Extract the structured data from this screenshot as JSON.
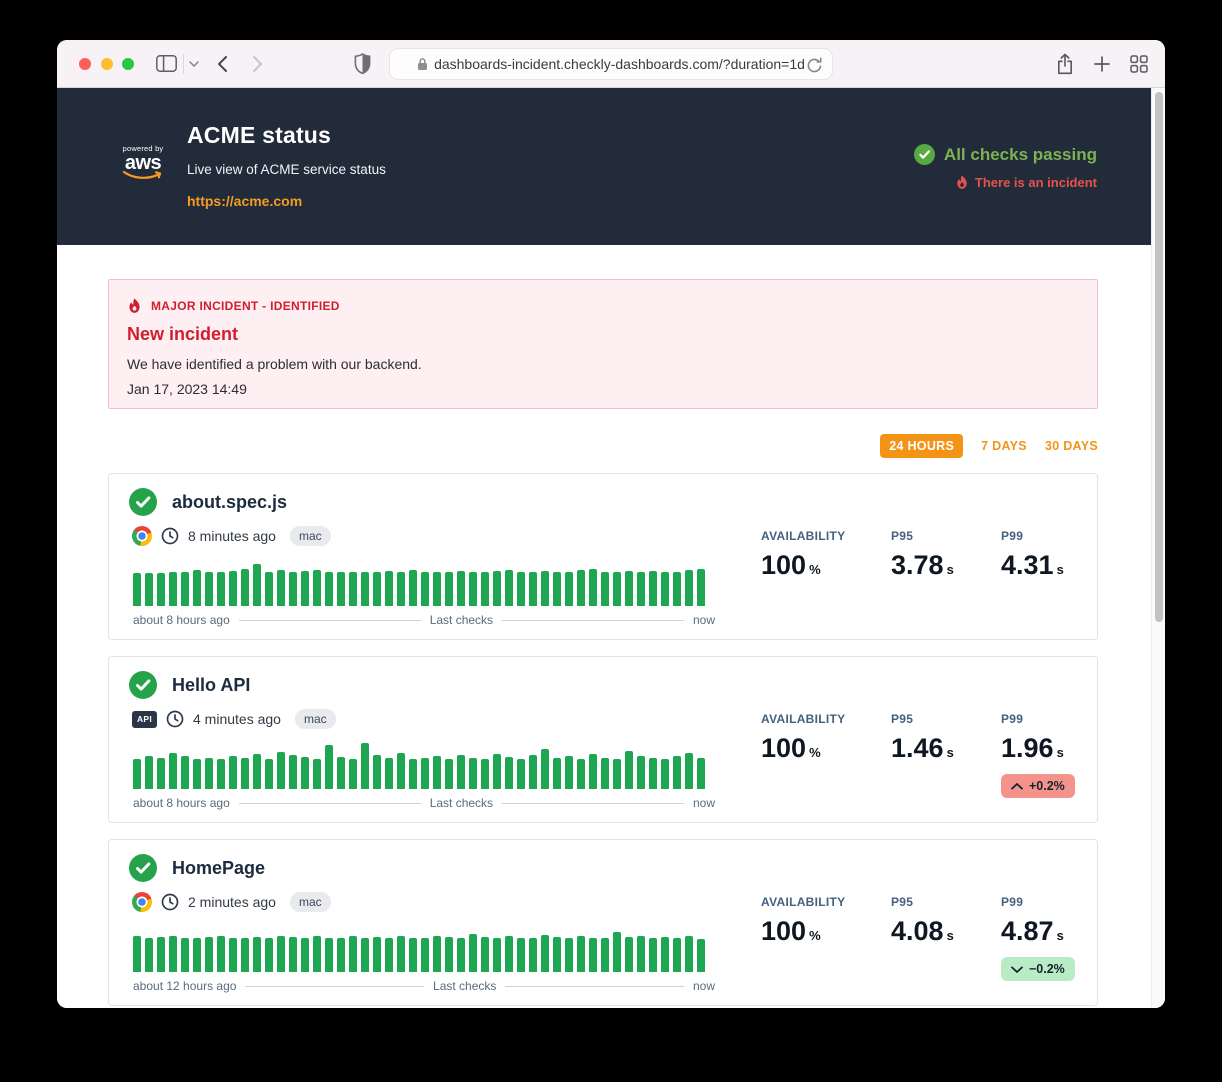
{
  "browser": {
    "url": "dashboards-incident.checkly-dashboards.com/?duration=1d"
  },
  "header": {
    "logo_powered_by": "powered by",
    "logo_text": "aws",
    "title": "ACME status",
    "subtitle": "Live view of ACME service status",
    "link": "https://acme.com",
    "status_ok": "All checks passing",
    "incident_link": "There is an incident"
  },
  "incident": {
    "label": "MAJOR INCIDENT - IDENTIFIED",
    "title": "New incident",
    "message": "We have identified a problem with our backend.",
    "timestamp": "Jan 17, 2023 14:49"
  },
  "duration_tabs": {
    "t24h": "24 HOURS",
    "t7d": "7 DAYS",
    "t30d": "30 DAYS",
    "active": "24 HOURS"
  },
  "stats_labels": {
    "availability": "AVAILABILITY",
    "p95": "P95",
    "p99": "P99"
  },
  "checks": [
    {
      "name": "about.spec.js",
      "type": "browser-check",
      "checked": "8 minutes ago",
      "tag": "mac",
      "availability": "100",
      "availability_unit": "%",
      "p95": "3.78",
      "p99": "4.31",
      "seconds_unit": "s",
      "axis": {
        "start": "about 8 hours ago",
        "mid": "Last checks",
        "end": "now"
      },
      "bars": [
        33,
        33,
        33,
        34,
        34,
        36,
        34,
        34,
        35,
        37,
        42,
        34,
        36,
        34,
        35,
        36,
        34,
        34,
        34,
        34,
        34,
        35,
        34,
        36,
        34,
        34,
        34,
        35,
        34,
        34,
        35,
        36,
        34,
        34,
        35,
        34,
        34,
        36,
        37,
        34,
        34,
        35,
        34,
        35,
        34,
        34,
        36,
        37
      ]
    },
    {
      "name": "Hello API",
      "type": "api-check",
      "type_badge": "API",
      "checked": "4 minutes ago",
      "tag": "mac",
      "availability": "100",
      "availability_unit": "%",
      "p95": "1.46",
      "p99": "1.96",
      "seconds_unit": "s",
      "trend": {
        "direction": "up",
        "label": "+0.2%"
      },
      "axis": {
        "start": "about 8 hours ago",
        "mid": "Last checks",
        "end": "now"
      },
      "bars": [
        30,
        33,
        31,
        36,
        33,
        30,
        31,
        30,
        33,
        31,
        35,
        30,
        37,
        34,
        32,
        30,
        44,
        32,
        30,
        46,
        34,
        31,
        36,
        30,
        31,
        33,
        30,
        34,
        31,
        30,
        35,
        32,
        30,
        34,
        40,
        31,
        33,
        30,
        35,
        31,
        30,
        38,
        33,
        31,
        30,
        33,
        36,
        31
      ]
    },
    {
      "name": "HomePage",
      "type": "browser-check",
      "checked": "2 minutes ago",
      "tag": "mac",
      "availability": "100",
      "availability_unit": "%",
      "p95": "4.08",
      "p99": "4.87",
      "seconds_unit": "s",
      "trend": {
        "direction": "down",
        "label": "−0.2%"
      },
      "axis": {
        "start": "about 12 hours ago",
        "mid": "Last checks",
        "end": "now"
      },
      "bars": [
        36,
        34,
        35,
        36,
        34,
        34,
        35,
        36,
        34,
        34,
        35,
        34,
        36,
        35,
        34,
        36,
        34,
        34,
        36,
        34,
        35,
        34,
        36,
        34,
        34,
        36,
        35,
        34,
        38,
        35,
        34,
        36,
        34,
        34,
        37,
        35,
        34,
        36,
        34,
        34,
        40,
        35,
        36,
        34,
        35,
        34,
        36,
        33
      ]
    }
  ],
  "colors": {
    "header_bg": "#212b39",
    "accent_orange": "#f49417",
    "link_orange": "#f59b23",
    "status_green": "#7db252",
    "check_green": "#26a24b",
    "bar_green": "#1ea652",
    "incident_red": "#d21d2e",
    "banner_bg": "#fdeff2",
    "trend_up_bg": "#f4938c",
    "trend_down_bg": "#b9ecc5"
  }
}
